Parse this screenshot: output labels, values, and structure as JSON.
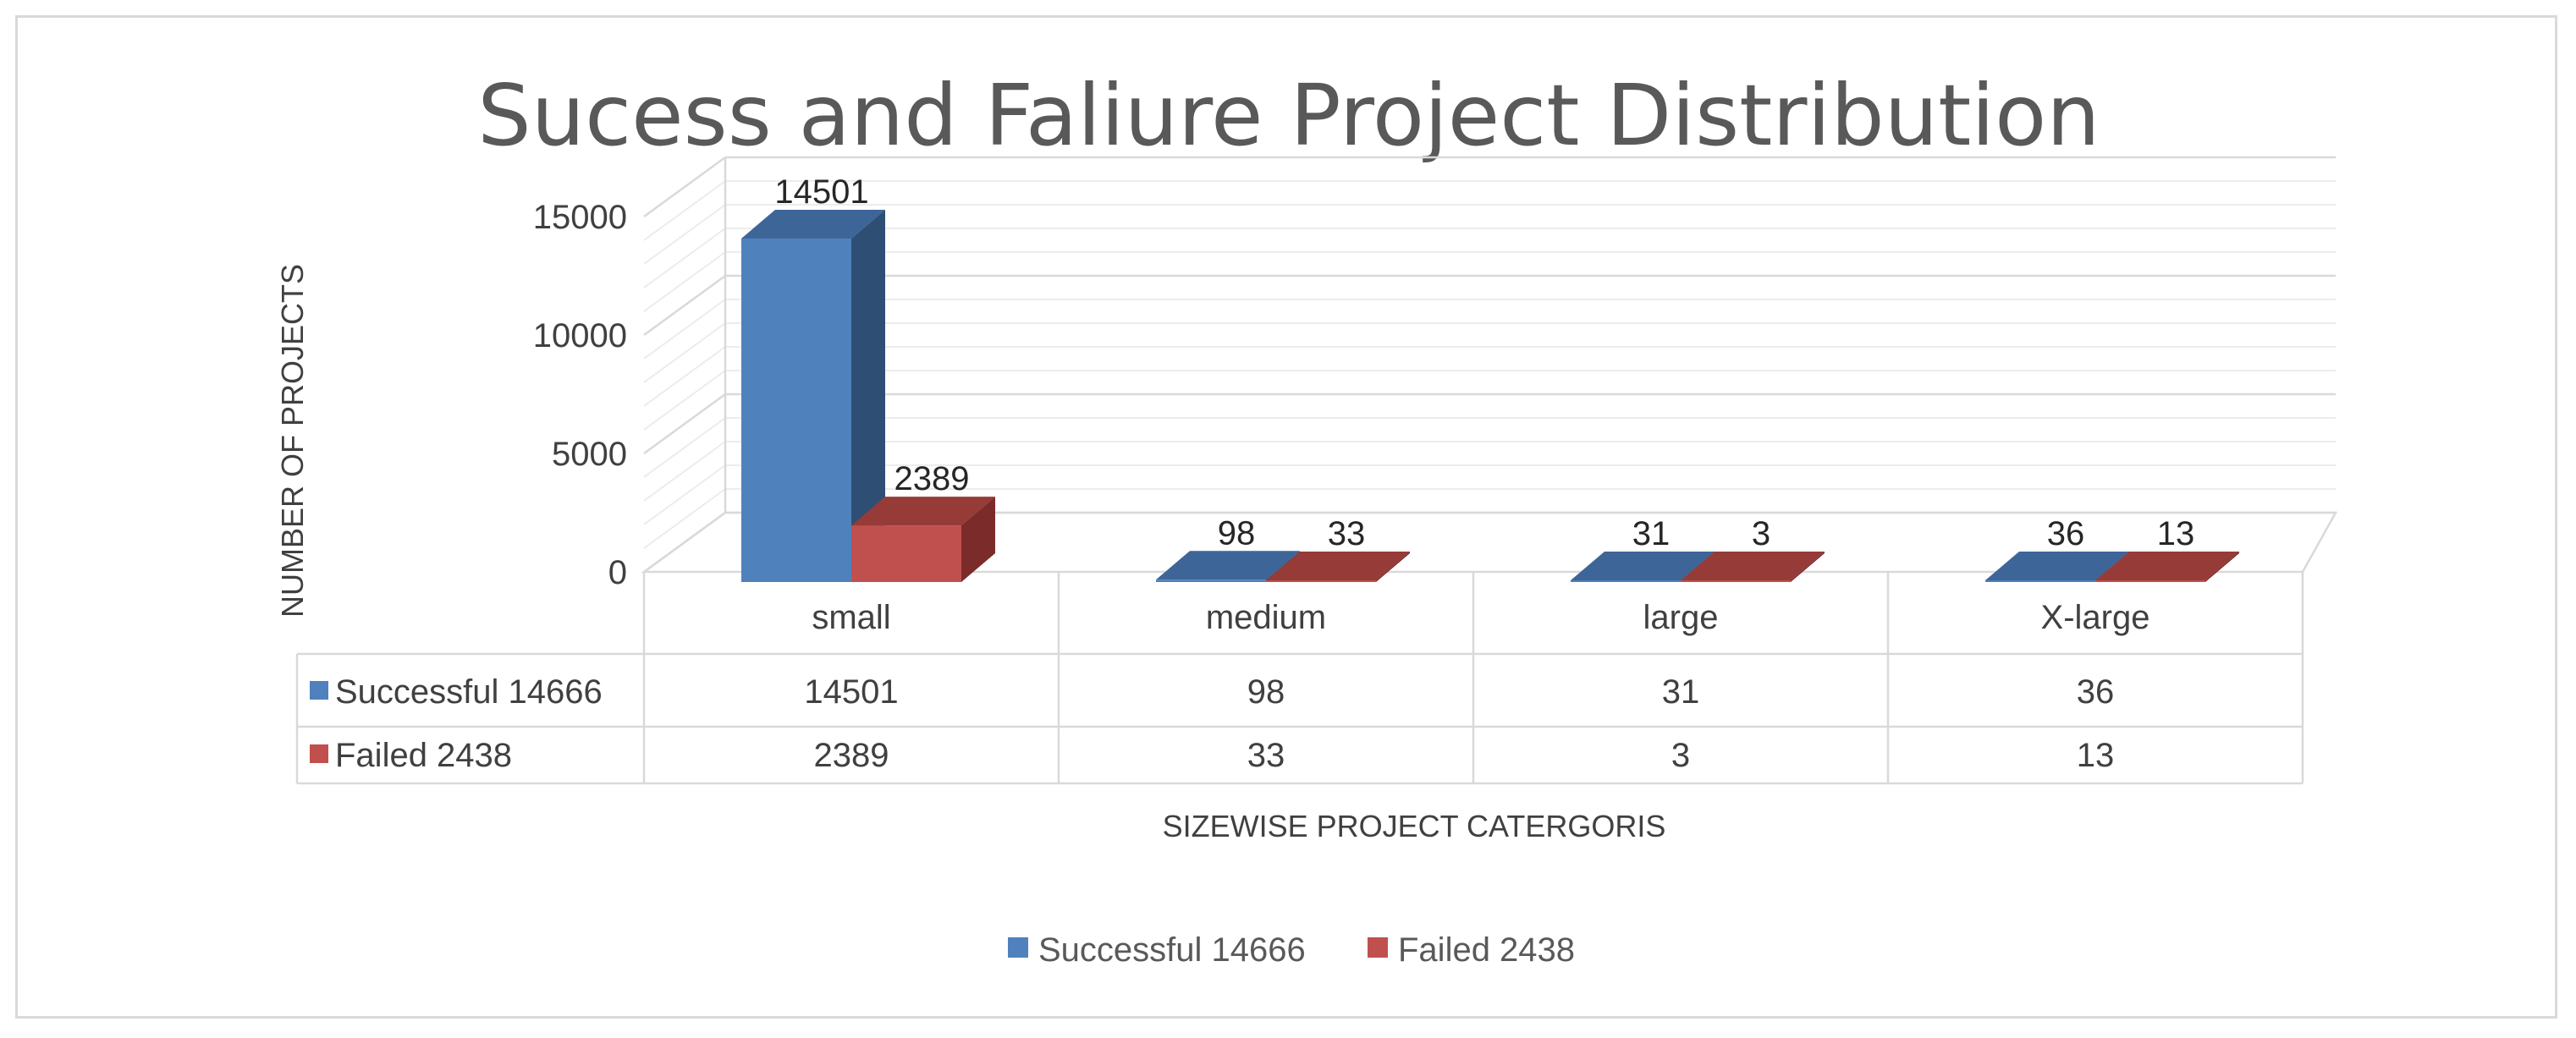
{
  "chart_data": {
    "type": "bar",
    "title": "Sucess and Faliure Project Distribution",
    "xlabel": "SIZEWISE PROJECT CATERGORIS",
    "ylabel": "NUMBER OF PROJECTS",
    "ylim": [
      0,
      15000
    ],
    "yticks": [
      0,
      5000,
      10000,
      15000
    ],
    "categories": [
      "small",
      "medium",
      "large",
      "X-large"
    ],
    "series": [
      {
        "name": "Successful 14666",
        "values": [
          14501,
          98,
          31,
          36
        ],
        "color": "#4f81bd",
        "side_color": "#2f4e74",
        "top_color": "#3d6598"
      },
      {
        "name": "Failed 2438",
        "values": [
          2389,
          33,
          3,
          13
        ],
        "color": "#c0504d",
        "side_color": "#7b2b29",
        "top_color": "#963b38"
      }
    ],
    "grid": true,
    "legend": "bottom",
    "data_table": true
  }
}
